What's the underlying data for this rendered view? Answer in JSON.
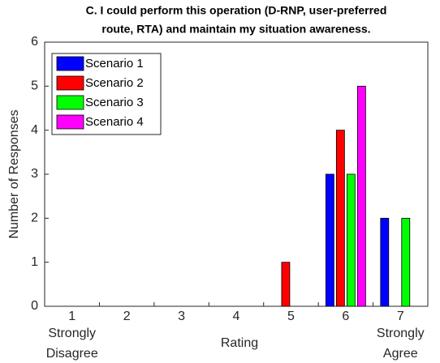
{
  "chart_data": {
    "type": "bar",
    "title": [
      "C. I could perform this operation (D-RNP, user-preferred",
      "route, RTA) and maintain my situation awareness."
    ],
    "xlabel": "Rating",
    "ylabel": "Number of Responses",
    "categories": [
      "1",
      "2",
      "3",
      "4",
      "5",
      "6",
      "7"
    ],
    "annotations": [
      [
        "Strongly",
        "Disagree"
      ],
      [
        "Strongly",
        "Agree"
      ]
    ],
    "series": [
      {
        "name": "Scenario 1",
        "color": "#0000ff",
        "values": [
          0,
          0,
          0,
          0,
          0,
          3,
          2
        ]
      },
      {
        "name": "Scenario 2",
        "color": "#ff0000",
        "values": [
          0,
          0,
          0,
          0,
          1,
          4,
          0
        ]
      },
      {
        "name": "Scenario 3",
        "color": "#00ff00",
        "values": [
          0,
          0,
          0,
          0,
          0,
          3,
          2
        ]
      },
      {
        "name": "Scenario 4",
        "color": "#ff00ff",
        "values": [
          0,
          0,
          0,
          0,
          0,
          5,
          0
        ]
      }
    ],
    "ylim": [
      0,
      6
    ],
    "yticks": [
      0,
      1,
      2,
      3,
      4,
      5,
      6
    ],
    "legend": "upper left"
  }
}
